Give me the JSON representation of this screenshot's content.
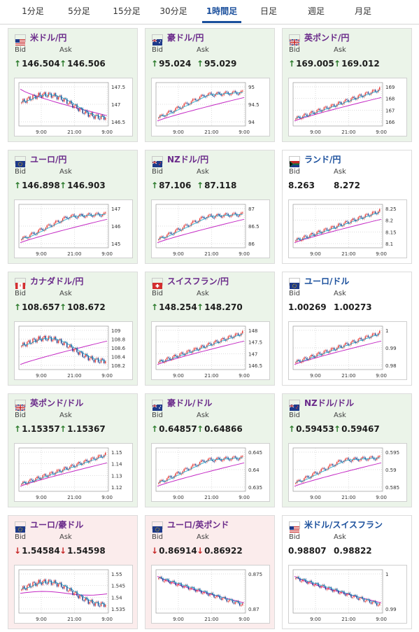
{
  "tabs": [
    {
      "label": "1分足",
      "active": false
    },
    {
      "label": "5分足",
      "active": false
    },
    {
      "label": "15分足",
      "active": false
    },
    {
      "label": "30分足",
      "active": false
    },
    {
      "label": "1時間足",
      "active": true
    },
    {
      "label": "日足",
      "active": false
    },
    {
      "label": "週足",
      "active": false
    },
    {
      "label": "月足",
      "active": false
    }
  ],
  "labels": {
    "bid": "Bid",
    "ask": "Ask"
  },
  "colors": {
    "tab_active": "#1a4f9c",
    "pair_purple": "#6a2a8a",
    "pair_blue": "#1a4f9c",
    "up": "#2a7a2a",
    "down": "#c62828",
    "candle_up": "#e53935",
    "candle_down": "#1e3a8a",
    "ma_long": "#c428c4",
    "ma_short": "#18a7c7"
  },
  "cards": [
    {
      "pair": "米ドル/円",
      "flag": "us",
      "bg": "green",
      "dir": "up",
      "bid": "146.504",
      "ask": "146.506",
      "chart": {
        "y_ticks": [
          "147.5",
          "147",
          "146.5"
        ],
        "x_ticks": [
          "9:00",
          "21:00",
          "9:00"
        ],
        "shape": "hump",
        "ma": "down"
      }
    },
    {
      "pair": "豪ドル/円",
      "flag": "au",
      "bg": "green",
      "dir": "up",
      "bid": "95.024",
      "ask": "95.029",
      "chart": {
        "y_ticks": [
          "95",
          "94.5",
          "94"
        ],
        "x_ticks": [
          "9:00",
          "21:00",
          "9:00"
        ],
        "shape": "rise_flat",
        "ma": "up"
      }
    },
    {
      "pair": "英ポンド/円",
      "flag": "gb",
      "bg": "green",
      "dir": "up",
      "bid": "169.005",
      "ask": "169.012",
      "chart": {
        "y_ticks": [
          "169",
          "168",
          "167",
          "166"
        ],
        "x_ticks": [
          "9:00",
          "21:00",
          "9:00"
        ],
        "shape": "rise",
        "ma": "up"
      }
    },
    {
      "pair": "ユーロ/円",
      "flag": "eu",
      "bg": "green",
      "dir": "up",
      "bid": "146.898",
      "ask": "146.903",
      "chart": {
        "y_ticks": [
          "147",
          "146",
          "145"
        ],
        "x_ticks": [
          "9:00",
          "21:00",
          "9:00"
        ],
        "shape": "rise_flat",
        "ma": "up"
      }
    },
    {
      "pair": "NZドル/円",
      "flag": "nz",
      "bg": "green",
      "dir": "up",
      "bid": "87.106",
      "ask": "87.118",
      "chart": {
        "y_ticks": [
          "87",
          "86.5",
          "86"
        ],
        "x_ticks": [
          "9:00",
          "21:00",
          "9:00"
        ],
        "shape": "rise_flat",
        "ma": "up"
      }
    },
    {
      "pair": "ランド/円",
      "flag": "za",
      "bg": "white",
      "dir": "none",
      "bid": "8.263",
      "ask": "8.272",
      "chart": {
        "y_ticks": [
          "8.25",
          "8.2",
          "8.15",
          "8.1"
        ],
        "x_ticks": [
          "9:00",
          "21:00",
          "9:00"
        ],
        "shape": "rise",
        "ma": "up"
      }
    },
    {
      "pair": "カナダドル/円",
      "flag": "ca",
      "bg": "green",
      "dir": "up",
      "bid": "108.657",
      "ask": "108.672",
      "chart": {
        "y_ticks": [
          "109",
          "108.8",
          "108.6",
          "108.4",
          "108.2"
        ],
        "x_ticks": [
          "9:00",
          "21:00",
          "9:00"
        ],
        "shape": "hump",
        "ma": "up"
      }
    },
    {
      "pair": "スイスフラン/円",
      "flag": "ch",
      "bg": "green",
      "dir": "up",
      "bid": "148.254",
      "ask": "148.270",
      "chart": {
        "y_ticks": [
          "148",
          "147.5",
          "147",
          "146.5"
        ],
        "x_ticks": [
          "9:00",
          "21:00",
          "9:00"
        ],
        "shape": "rise",
        "ma": "up"
      }
    },
    {
      "pair": "ユーロ/ドル",
      "flag": "eu",
      "bg": "white",
      "dir": "none",
      "bid": "1.00269",
      "ask": "1.00273",
      "chart": {
        "y_ticks": [
          "1",
          "0.99",
          "0.98"
        ],
        "x_ticks": [
          "9:00",
          "21:00",
          "9:00"
        ],
        "shape": "rise",
        "ma": "up"
      }
    },
    {
      "pair": "英ポンド/ドル",
      "flag": "gb",
      "bg": "green",
      "dir": "up",
      "bid": "1.15357",
      "ask": "1.15367",
      "chart": {
        "y_ticks": [
          "1.15",
          "1.14",
          "1.13",
          "1.12"
        ],
        "x_ticks": [
          "9:00",
          "21:00",
          "9:00"
        ],
        "shape": "rise",
        "ma": "up"
      }
    },
    {
      "pair": "豪ドル/ドル",
      "flag": "au",
      "bg": "green",
      "dir": "up",
      "bid": "0.64857",
      "ask": "0.64866",
      "chart": {
        "y_ticks": [
          "0.645",
          "0.64",
          "0.635"
        ],
        "x_ticks": [
          "9:00",
          "21:00",
          "9:00"
        ],
        "shape": "rise_flat",
        "ma": "up"
      }
    },
    {
      "pair": "NZドル/ドル",
      "flag": "nz",
      "bg": "green",
      "dir": "up",
      "bid": "0.59453",
      "ask": "0.59467",
      "chart": {
        "y_ticks": [
          "0.595",
          "0.59",
          "0.585"
        ],
        "x_ticks": [
          "9:00",
          "21:00",
          "9:00"
        ],
        "shape": "rise_flat",
        "ma": "up"
      }
    },
    {
      "pair": "ユーロ/豪ドル",
      "flag": "eu",
      "bg": "red",
      "dir": "down",
      "bid": "1.54584",
      "ask": "1.54598",
      "chart": {
        "y_ticks": [
          "1.55",
          "1.545",
          "1.54",
          "1.535"
        ],
        "x_ticks": [
          "9:00",
          "21:00",
          "9:00"
        ],
        "shape": "hump",
        "ma": "flat"
      }
    },
    {
      "pair": "ユーロ/英ポンド",
      "flag": "eu",
      "bg": "red",
      "dir": "down",
      "bid": "0.86914",
      "ask": "0.86922",
      "chart": {
        "y_ticks": [
          "0.875",
          "0.87"
        ],
        "x_ticks": [
          "9:00",
          "21:00",
          "9:00"
        ],
        "shape": "fall",
        "ma": "down"
      }
    },
    {
      "pair": "米ドル/スイスフラン",
      "flag": "us",
      "bg": "white",
      "dir": "none",
      "bid": "0.98807",
      "ask": "0.98822",
      "chart": {
        "y_ticks": [
          "1",
          "0.99"
        ],
        "x_ticks": [
          "9:00",
          "21:00",
          "9:00"
        ],
        "shape": "fall",
        "ma": "down"
      }
    }
  ]
}
